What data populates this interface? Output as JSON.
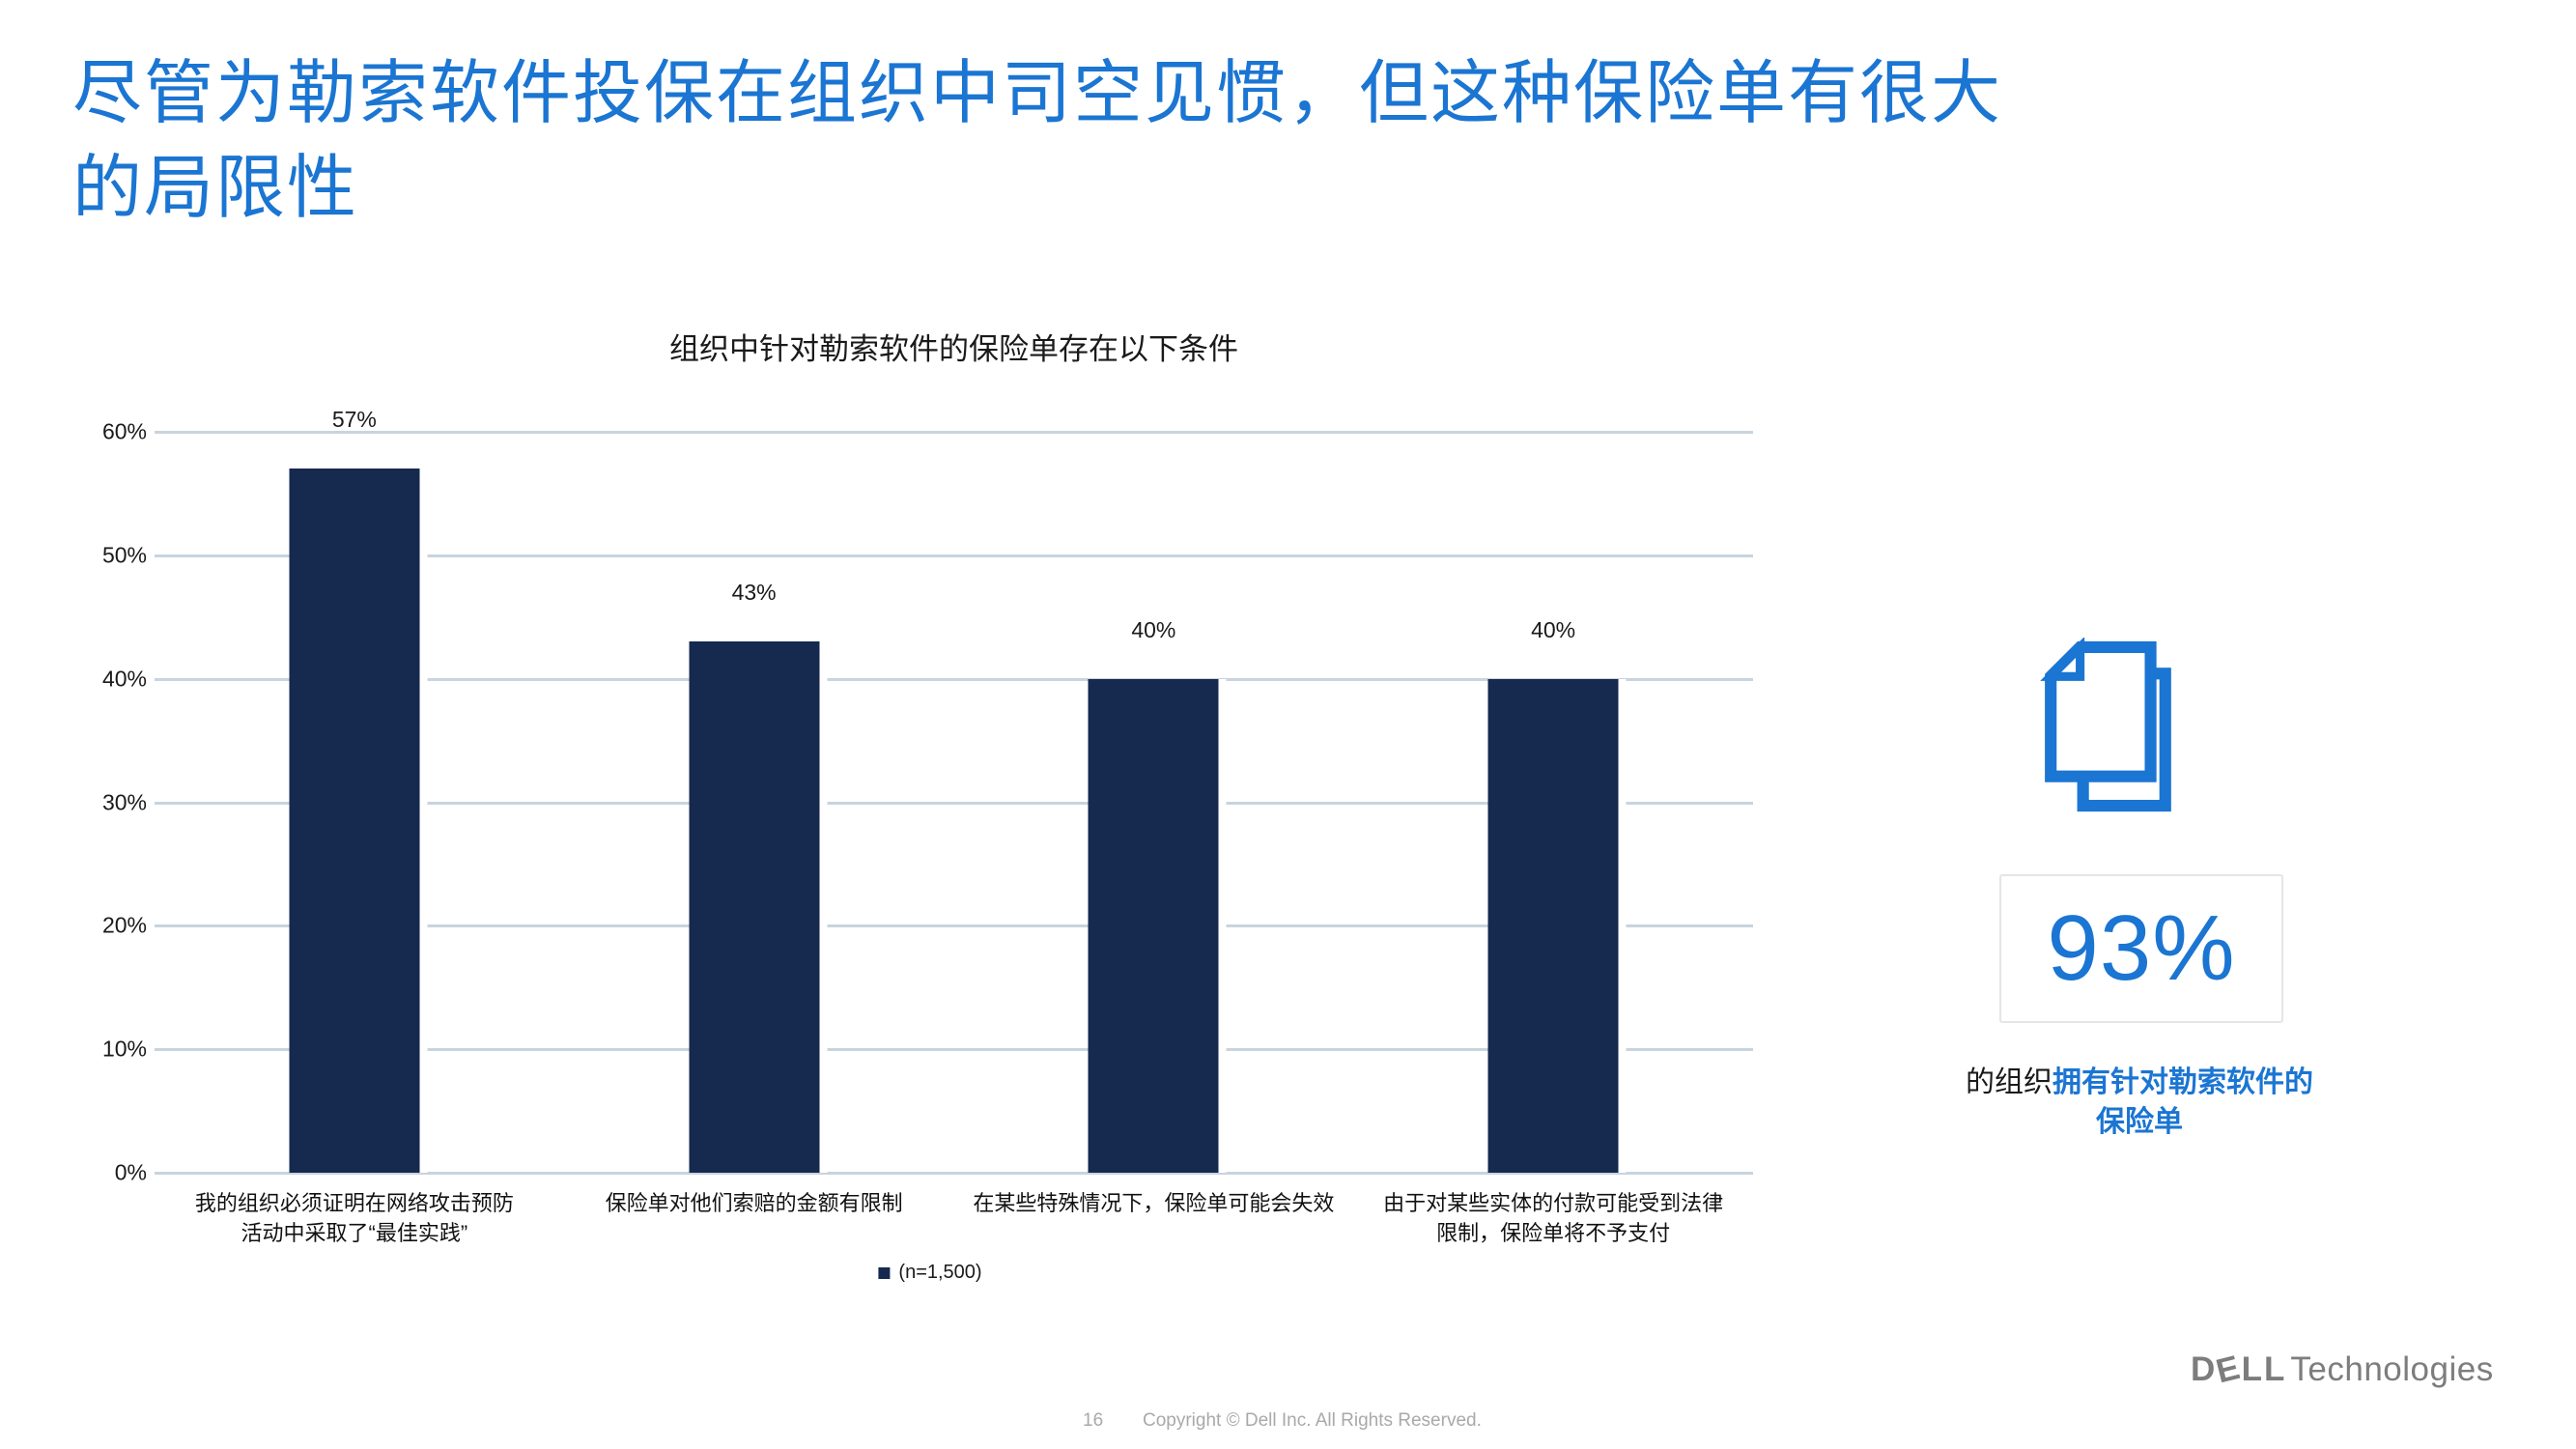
{
  "colors": {
    "accent_blue": "#1b75d2",
    "bar_navy": "#16294f",
    "gridline_gray": "#c8d4de",
    "text_dark": "#1a1a1a",
    "footer_gray": "#a9a9a9",
    "logo_gray": "#7d7d7d"
  },
  "title": {
    "line1": "尽管为勒索软件投保在组织中司空见惯，但这种保险单有很大",
    "line2": "的局限性"
  },
  "chart_data": {
    "type": "bar",
    "title": "组织中针对勒索软件的保险单存在以下条件",
    "categories": [
      [
        "我的组织必须证明在网络攻击预防",
        "活动中采取了“最佳实践”"
      ],
      [
        "保险单对他们索赔的金额有限制"
      ],
      [
        "在某些特殊情况下，保险单可能会失效"
      ],
      [
        "由于对某些实体的付款可能受到法律",
        "限制，保险单将不予支付"
      ]
    ],
    "values": [
      57,
      43,
      40,
      40
    ],
    "value_labels": [
      "57%",
      "43%",
      "40%",
      "40%"
    ],
    "ylim": [
      0,
      60
    ],
    "ytick_labels": [
      "60%",
      "50%",
      "40%",
      "30%",
      "20%",
      "10%",
      "0%"
    ],
    "grid": true,
    "legend": {
      "label": "(n=1,500)",
      "position": "bottom-center"
    },
    "bar_color": "#16294f"
  },
  "highlight": {
    "icon": "documents-icon",
    "stat_value": "93%",
    "caption": {
      "line1_black": "的组织",
      "line1_blue": "拥有针对勒索软件的",
      "line2_blue": "保险单"
    }
  },
  "footer": {
    "page_number": "16",
    "copyright": "Copyright © Dell Inc. All Rights Reserved.",
    "brand": {
      "dell": "DELL",
      "technologies": "Technologies"
    }
  }
}
